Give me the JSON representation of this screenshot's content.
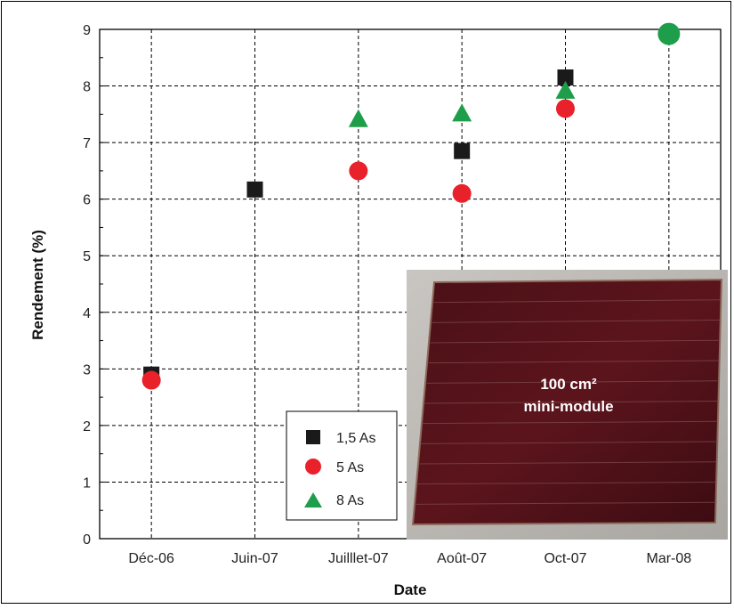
{
  "chart_data": {
    "type": "scatter",
    "xlabel": "Date",
    "ylabel": "Rendement (%)",
    "categories": [
      "Déc-06",
      "Juin-07",
      "Juilllet-07",
      "Août-07",
      "Oct-07",
      "Mar-08"
    ],
    "ylim": [
      0,
      9
    ],
    "yticks": [
      0,
      1,
      2,
      3,
      4,
      5,
      6,
      7,
      8,
      9
    ],
    "grid": true,
    "legend_position": "bottom-center",
    "series": [
      {
        "name": "1,5 As",
        "marker": "square",
        "color": "#1a1a1a",
        "points": [
          {
            "x": "Déc-06",
            "y": 2.9
          },
          {
            "x": "Juin-07",
            "y": 6.17
          },
          {
            "x": "Août-07",
            "y": 6.85
          },
          {
            "x": "Oct-07",
            "y": 8.15
          }
        ]
      },
      {
        "name": "5 As",
        "marker": "circle",
        "color": "#e8212b",
        "points": [
          {
            "x": "Déc-06",
            "y": 2.8
          },
          {
            "x": "Juillet-07",
            "y": 6.5
          },
          {
            "x": "Août-07",
            "y": 6.1
          },
          {
            "x": "Oct-07",
            "y": 7.6
          }
        ]
      },
      {
        "name": "8 As",
        "marker": "triangle",
        "color": "#1e9e4a",
        "points": [
          {
            "x": "Juilllet-07",
            "y": 7.4
          },
          {
            "x": "Août-07",
            "y": 7.5
          },
          {
            "x": "Oct-07",
            "y": 7.9
          },
          {
            "x": "Mar-08",
            "y": 8.92
          }
        ]
      }
    ],
    "inset": {
      "line1": "100 cm²",
      "line2": "mini-module",
      "description": "photo of solar mini-module"
    }
  }
}
